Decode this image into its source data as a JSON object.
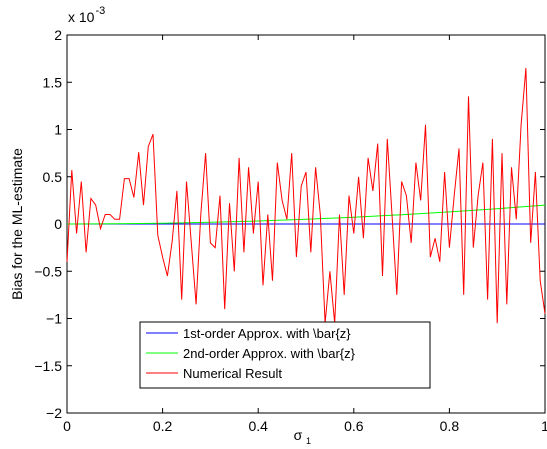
{
  "chart_data": {
    "type": "line",
    "title": "",
    "xlabel": "σ",
    "xlabel_subscript": "1",
    "ylabel": "Bias for the ML-estimate",
    "y_exponent_label": "x 10",
    "y_exponent_power": "-3",
    "xlim": [
      0,
      1
    ],
    "ylim": [
      -2,
      2
    ],
    "xticks": [
      0,
      0.2,
      0.4,
      0.6,
      0.8,
      1
    ],
    "xtick_labels": [
      "0",
      "0.2",
      "0.4",
      "0.6",
      "0.8",
      "1"
    ],
    "yticks": [
      -2,
      -1.5,
      -1,
      -0.5,
      0,
      0.5,
      1,
      1.5,
      2
    ],
    "ytick_labels": [
      "−2",
      "−1.5",
      "−1",
      "−0.5",
      "0",
      "0.5",
      "1",
      "1.5",
      "2"
    ],
    "grid": false,
    "legend_position": "lower-left",
    "series": [
      {
        "name": "1st-order Approx. with \\bar{z}",
        "color": "#0000ff",
        "x": [
          0,
          0.2,
          0.4,
          0.6,
          0.8,
          1
        ],
        "y": [
          0,
          0,
          0,
          0,
          0,
          0
        ]
      },
      {
        "name": "2nd-order Approx. with \\bar{z}",
        "color": "#00ff00",
        "x": [
          0,
          0.1,
          0.2,
          0.3,
          0.4,
          0.5,
          0.6,
          0.7,
          0.8,
          0.9,
          1
        ],
        "y": [
          0,
          0.002,
          0.008,
          0.018,
          0.032,
          0.05,
          0.072,
          0.098,
          0.128,
          0.162,
          0.2
        ]
      },
      {
        "name": "Numerical Result",
        "color": "#ff0000",
        "x": [
          0,
          0.01,
          0.02,
          0.03,
          0.04,
          0.05,
          0.06,
          0.07,
          0.08,
          0.09,
          0.1,
          0.11,
          0.12,
          0.13,
          0.14,
          0.15,
          0.16,
          0.17,
          0.18,
          0.19,
          0.2,
          0.21,
          0.22,
          0.23,
          0.24,
          0.25,
          0.26,
          0.27,
          0.28,
          0.29,
          0.3,
          0.31,
          0.32,
          0.33,
          0.34,
          0.35,
          0.36,
          0.37,
          0.38,
          0.39,
          0.4,
          0.41,
          0.42,
          0.43,
          0.44,
          0.45,
          0.46,
          0.47,
          0.48,
          0.49,
          0.5,
          0.51,
          0.52,
          0.53,
          0.54,
          0.55,
          0.56,
          0.57,
          0.58,
          0.59,
          0.6,
          0.61,
          0.62,
          0.63,
          0.64,
          0.65,
          0.66,
          0.67,
          0.68,
          0.69,
          0.7,
          0.71,
          0.72,
          0.73,
          0.74,
          0.75,
          0.76,
          0.77,
          0.78,
          0.79,
          0.8,
          0.81,
          0.82,
          0.83,
          0.84,
          0.85,
          0.86,
          0.87,
          0.88,
          0.89,
          0.9,
          0.91,
          0.92,
          0.93,
          0.94,
          0.95,
          0.96,
          0.97,
          0.98,
          0.99,
          1.0
        ],
        "y": [
          -0.4,
          0.57,
          -0.1,
          0.45,
          -0.3,
          0.27,
          0.2,
          -0.05,
          0.1,
          0.1,
          0.05,
          0.05,
          0.48,
          0.48,
          0.28,
          0.76,
          0.2,
          0.82,
          0.95,
          -0.12,
          -0.35,
          -0.55,
          -0.18,
          0.35,
          -0.8,
          0.45,
          -0.2,
          -0.85,
          0.1,
          0.75,
          -0.2,
          -0.25,
          0.3,
          -0.9,
          0.22,
          -0.5,
          0.7,
          -0.3,
          0.6,
          -0.1,
          0.45,
          -0.65,
          0.1,
          -0.6,
          0.65,
          0.25,
          0.05,
          0.75,
          -0.35,
          0.4,
          0.55,
          -0.3,
          0.6,
          0.1,
          -1.05,
          -0.5,
          -1.05,
          0.1,
          -0.75,
          0.3,
          -0.1,
          0.5,
          -0.15,
          0.7,
          0.35,
          0.85,
          -0.55,
          0.9,
          0.1,
          -0.75,
          0.45,
          0.3,
          -0.2,
          0.65,
          0.25,
          1.05,
          -0.35,
          -0.15,
          -0.4,
          0.55,
          -0.25,
          0.3,
          0.8,
          -0.75,
          1.35,
          -0.25,
          0.3,
          0.65,
          -0.8,
          0.9,
          -1.05,
          0.75,
          -0.85,
          0.6,
          0.05,
          1.05,
          1.65,
          -0.2,
          0.55,
          -0.6,
          -0.95
        ]
      }
    ]
  }
}
